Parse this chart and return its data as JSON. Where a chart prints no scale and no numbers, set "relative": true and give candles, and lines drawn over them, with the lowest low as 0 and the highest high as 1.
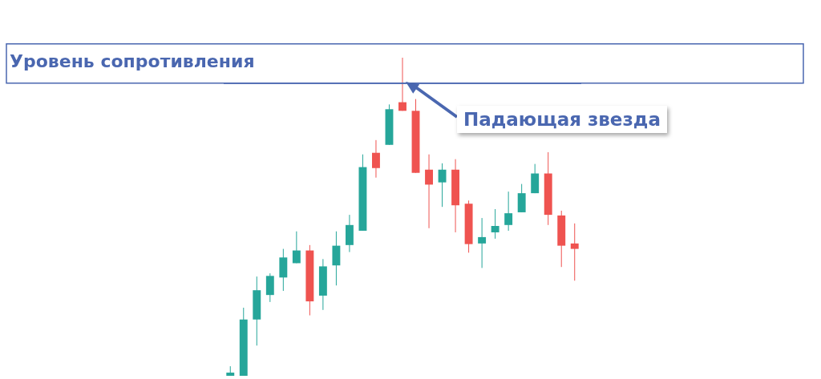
{
  "chart_data": {
    "type": "candlestick",
    "relative": true,
    "categories": [
      null,
      null,
      null,
      null,
      null,
      null,
      null,
      null,
      null,
      null,
      null,
      null,
      null,
      null,
      null,
      null,
      null,
      null,
      null,
      null,
      null,
      null,
      null,
      null,
      null,
      null,
      null
    ],
    "ohlc": [
      [
        0,
        0.03,
        0,
        0.01
      ],
      [
        0,
        0.214,
        0,
        0.177
      ],
      [
        0.177,
        0.312,
        0.095,
        0.269
      ],
      [
        0.254,
        0.322,
        0.232,
        0.314
      ],
      [
        0.309,
        0.399,
        0.267,
        0.372
      ],
      [
        0.354,
        0.454,
        0.354,
        0.394
      ],
      [
        0.394,
        0.411,
        0.19,
        0.234
      ],
      [
        0.252,
        0.367,
        0.207,
        0.344
      ],
      [
        0.347,
        0.454,
        0.284,
        0.409
      ],
      [
        0.411,
        0.506,
        0.389,
        0.474
      ],
      [
        0.456,
        0.696,
        0.456,
        0.656
      ],
      [
        0.701,
        0.741,
        0.623,
        0.653
      ],
      [
        0.726,
        0.853,
        0.726,
        0.838
      ],
      [
        0.86,
        1,
        0.833,
        0.833
      ],
      [
        0.833,
        0.87,
        0.638,
        0.638
      ],
      [
        0.648,
        0.696,
        0.464,
        0.601
      ],
      [
        0.608,
        0.668,
        0.531,
        0.648
      ],
      [
        0.648,
        0.681,
        0.451,
        0.536
      ],
      [
        0.541,
        0.551,
        0.387,
        0.414
      ],
      [
        0.416,
        0.496,
        0.339,
        0.436
      ],
      [
        0.451,
        0.524,
        0.431,
        0.471
      ],
      [
        0.474,
        0.579,
        0.456,
        0.511
      ],
      [
        0.514,
        0.603,
        0.514,
        0.574
      ],
      [
        0.574,
        0.666,
        0.574,
        0.636
      ],
      [
        0.636,
        0.703,
        0.474,
        0.506
      ],
      [
        0.504,
        0.519,
        0.342,
        0.409
      ],
      [
        0.416,
        0.479,
        0.299,
        0.399
      ]
    ],
    "colors": [
      "#26a69a",
      "#26a69a",
      "#26a69a",
      "#26a69a",
      "#26a69a",
      "#26a69a",
      "#ef5350",
      "#26a69a",
      "#26a69a",
      "#26a69a",
      "#26a69a",
      "#ef5350",
      "#26a69a",
      "#ef5350",
      "#ef5350",
      "#ef5350",
      "#26a69a",
      "#ef5350",
      "#ef5350",
      "#26a69a",
      "#26a69a",
      "#26a69a",
      "#26a69a",
      "#26a69a",
      "#ef5350",
      "#ef5350",
      "#ef5350"
    ],
    "ref_lines": [
      {
        "axis": "y",
        "value": 0.92,
        "label": "Уровень сопротивления",
        "color": "#4a67b0"
      }
    ],
    "annotations": [
      "Падающая звезда"
    ]
  }
}
